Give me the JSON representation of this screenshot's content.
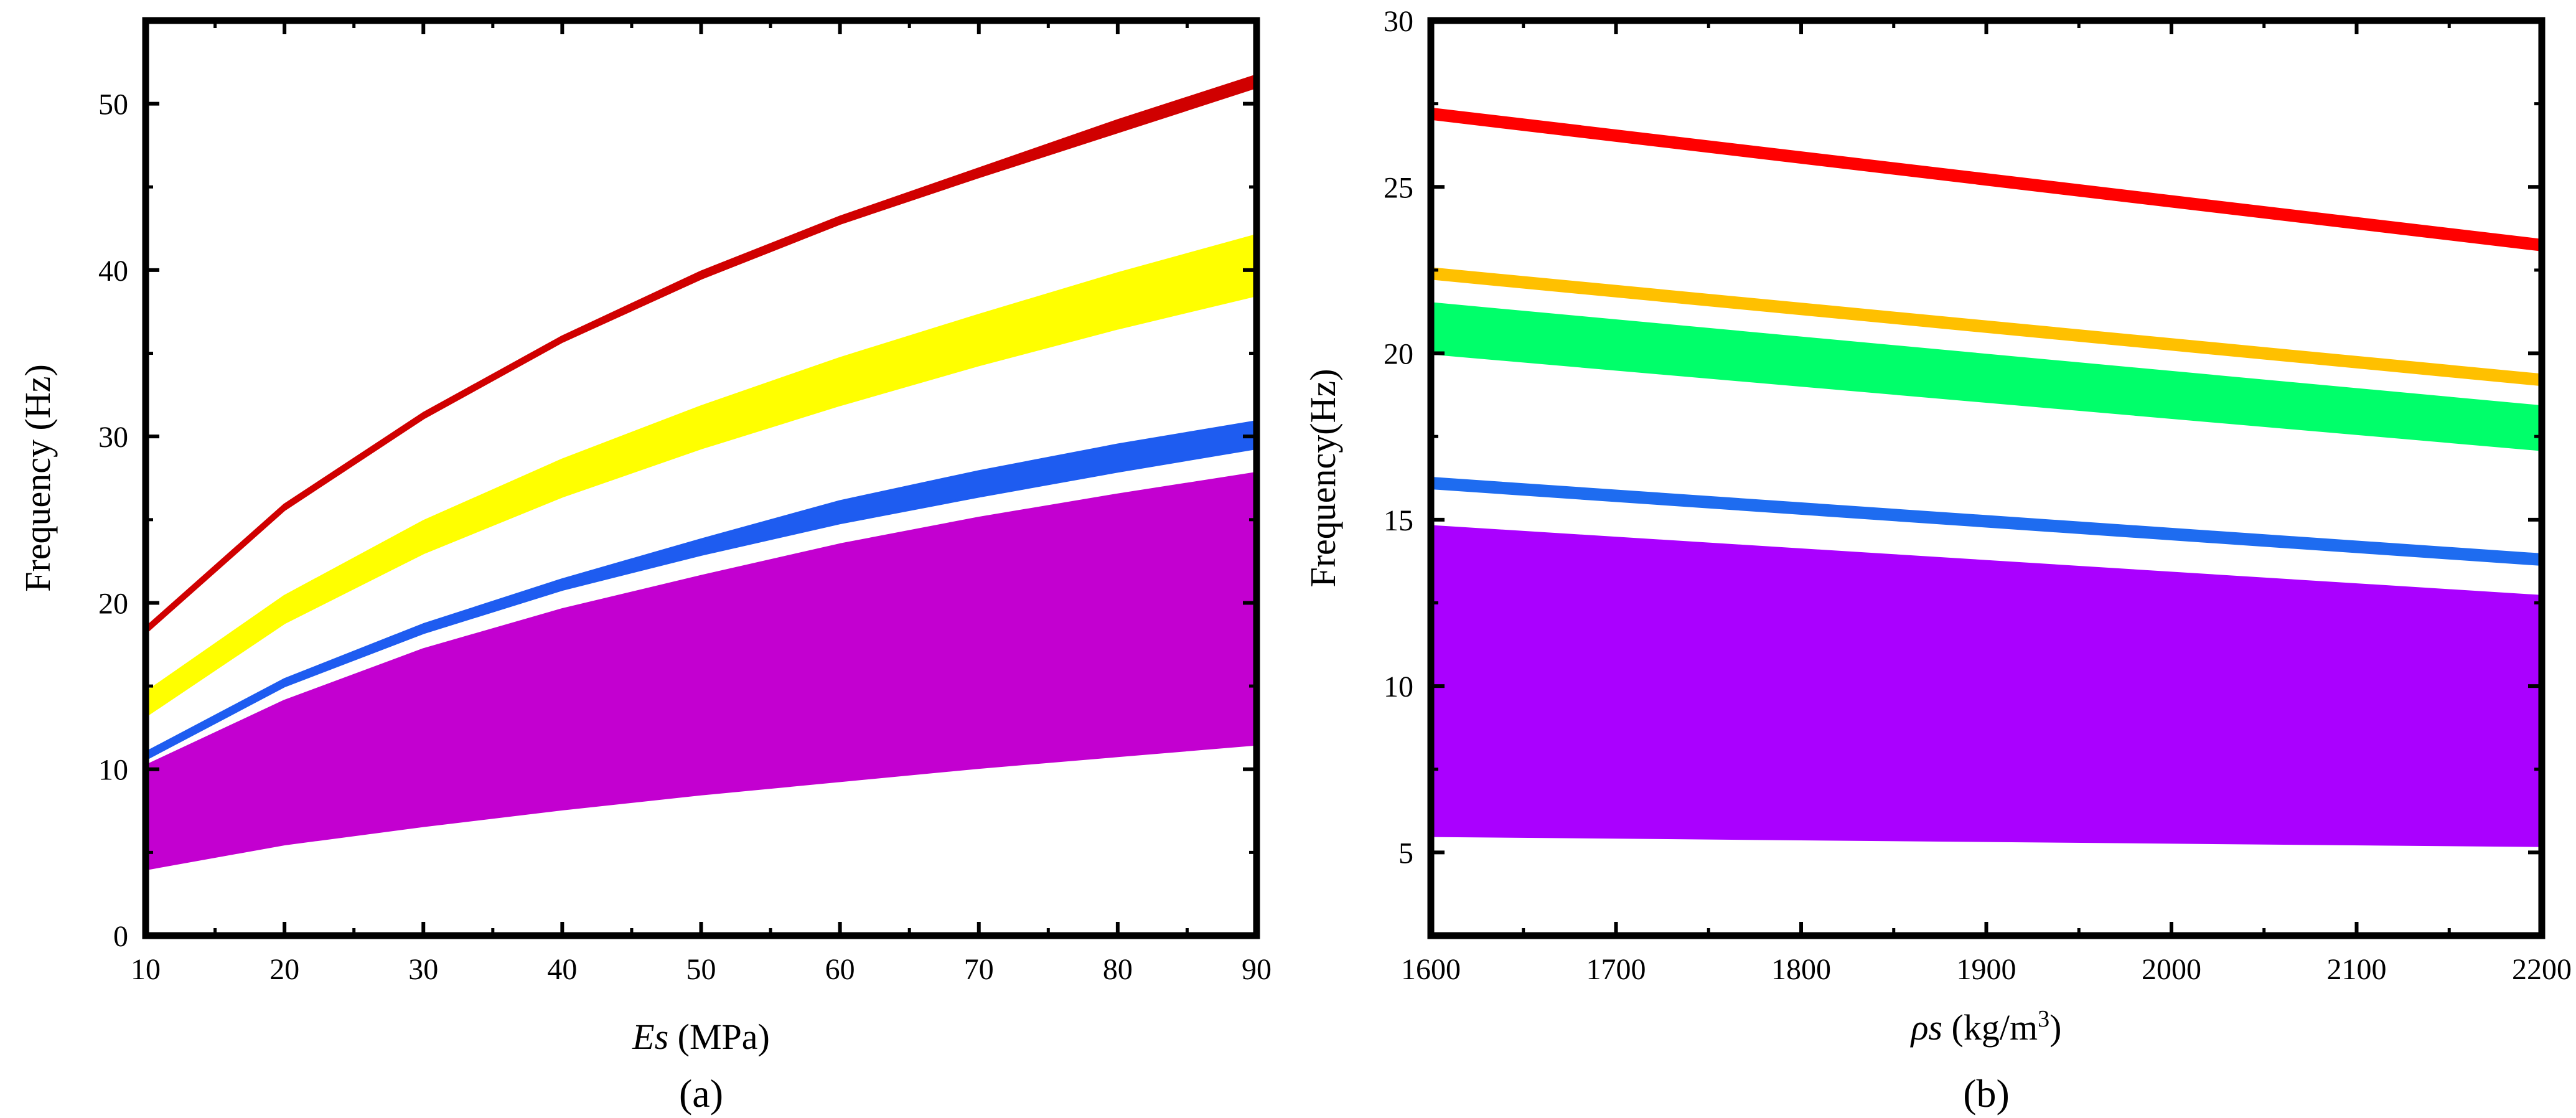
{
  "chart_data": [
    {
      "type": "area",
      "panel_label": "(a)",
      "xlabel_var": "Es",
      "xlabel_unit": " (MPa)",
      "ylabel": "Frequency (Hz)",
      "xlim": [
        10,
        90
      ],
      "ylim": [
        0,
        55
      ],
      "xticks": [
        10,
        20,
        30,
        40,
        50,
        60,
        70,
        80,
        90
      ],
      "yticks": [
        0,
        10,
        20,
        30,
        40,
        50
      ],
      "x": [
        10,
        20,
        30,
        40,
        50,
        60,
        70,
        80,
        90
      ],
      "bands": [
        {
          "name": "band-1",
          "color": "#c300d0",
          "lower": [
            4,
            5.5,
            6.6,
            7.6,
            8.5,
            9.3,
            10.1,
            10.8,
            11.5
          ],
          "upper": [
            10.2,
            14.1,
            17.2,
            19.6,
            21.6,
            23.5,
            25.1,
            26.5,
            27.8
          ]
        },
        {
          "name": "band-2",
          "color": "#1e5cf0",
          "lower": [
            10.6,
            15,
            18.2,
            20.8,
            22.9,
            24.8,
            26.4,
            27.9,
            29.3
          ],
          "upper": [
            11,
            15.4,
            18.7,
            21.4,
            23.8,
            26.1,
            27.9,
            29.5,
            30.9
          ]
        },
        {
          "name": "band-3",
          "color": "#ffff00",
          "lower": [
            13.2,
            18.8,
            23,
            26.4,
            29.3,
            31.9,
            34.3,
            36.5,
            38.5
          ],
          "upper": [
            14.6,
            20.4,
            24.9,
            28.6,
            31.8,
            34.7,
            37.3,
            39.8,
            42.1
          ]
        },
        {
          "name": "band-4",
          "color": "#d00000",
          "lower": [
            18.2,
            25.6,
            31.1,
            35.7,
            39.5,
            42.8,
            45.6,
            48.3,
            51
          ],
          "upper": [
            18.5,
            25.9,
            31.4,
            36,
            39.9,
            43.2,
            46.1,
            49,
            51.7
          ]
        }
      ]
    },
    {
      "type": "area",
      "panel_label": "(b)",
      "xlabel_var": "ρs",
      "xlabel_unit": " (kg/m",
      "xlabel_sup": "3",
      "xlabel_close": ")",
      "ylabel": "Frequency(Hz)",
      "xlim": [
        1600,
        2200
      ],
      "ylim": [
        2.5,
        30
      ],
      "xticks": [
        1600,
        1700,
        1800,
        1900,
        2000,
        2100,
        2200
      ],
      "yticks": [
        5,
        10,
        15,
        20,
        25,
        30
      ],
      "x": [
        1600,
        2200
      ],
      "bands": [
        {
          "name": "band-1",
          "color": "#aa00ff",
          "lower": [
            5.5,
            5.2
          ],
          "upper": [
            14.8,
            12.7
          ]
        },
        {
          "name": "band-2",
          "color": "#1e6cf0",
          "lower": [
            15.95,
            13.65
          ],
          "upper": [
            16.25,
            13.95
          ]
        },
        {
          "name": "band-3",
          "color": "#00ff6a",
          "lower": [
            20,
            17.1
          ],
          "upper": [
            21.5,
            18.4
          ]
        },
        {
          "name": "band-4",
          "color": "#ffc000",
          "lower": [
            22.25,
            19.05
          ],
          "upper": [
            22.55,
            19.35
          ]
        },
        {
          "name": "band-5",
          "color": "#ff0000",
          "lower": [
            27.05,
            23.1
          ],
          "upper": [
            27.35,
            23.4
          ]
        }
      ]
    }
  ]
}
